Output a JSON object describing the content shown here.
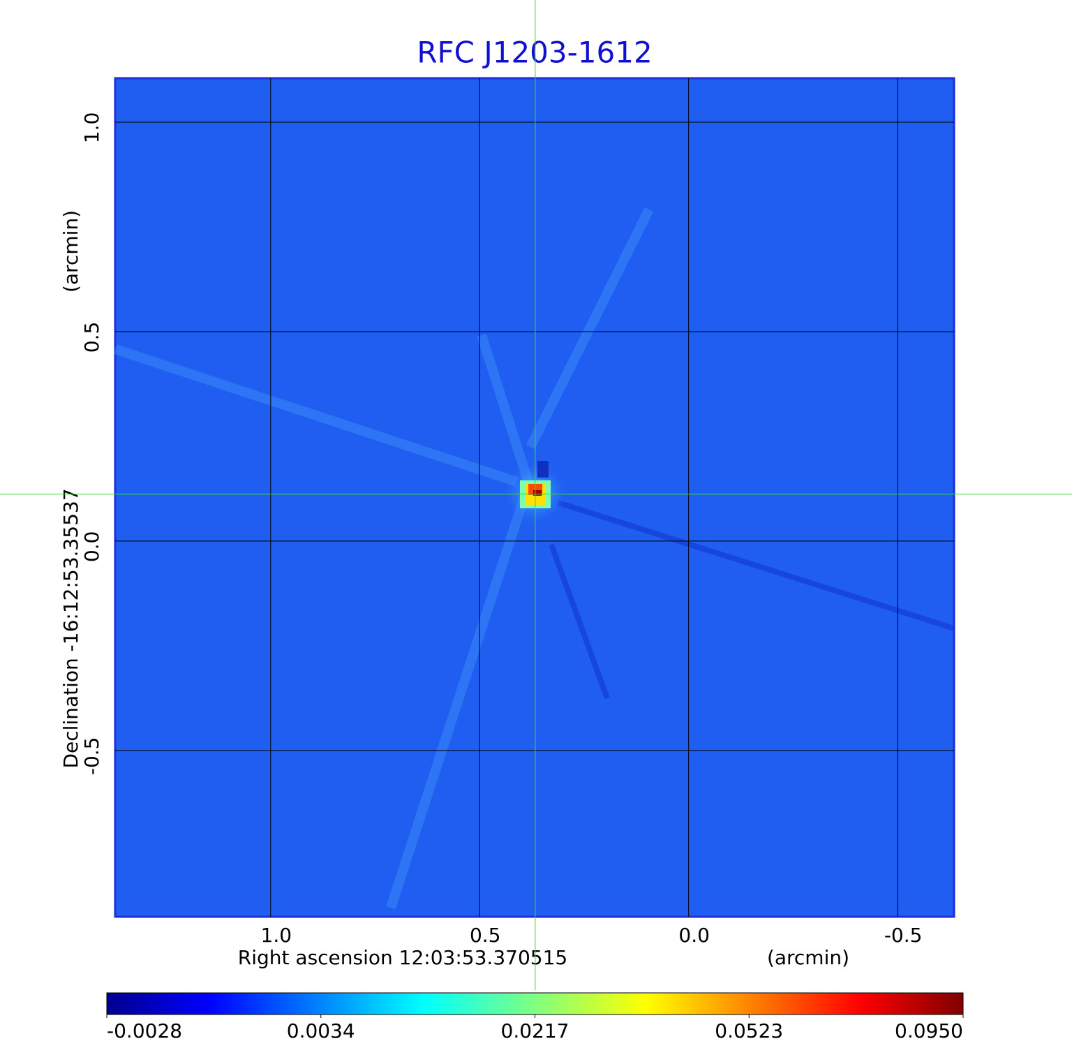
{
  "chart_data": {
    "type": "image",
    "title": "RFC J1203-1612",
    "x_label": "Right ascension  12:03:53.370515",
    "x_unit": "(arcmin)",
    "y_label": "Declination  -16:12:53.35537",
    "y_unit": "(arcmin)",
    "xlim": [
      1.372,
      -0.635
    ],
    "ylim": [
      -0.897,
      1.105
    ],
    "xticks": [
      {
        "value": 1,
        "label": "1.0"
      },
      0.5,
      {
        "value": 0,
        "label": "0.0"
      },
      -0.5
    ],
    "yticks": [
      {
        "value": 1,
        "label": "1.0"
      },
      0.5,
      {
        "value": 0,
        "label": "0.0"
      },
      -0.5
    ],
    "grid": true,
    "crosshair": {
      "x": 0.367,
      "y": 0.112,
      "color": "#33dd33"
    },
    "colormap": "jet",
    "colorbar_ticks": [
      {
        "value": -0.0028,
        "label": "-0.0028"
      },
      {
        "value": 0.0034,
        "label": "0.0034"
      },
      {
        "value": 0.0217,
        "label": "0.0217"
      },
      {
        "value": 0.0523,
        "label": "0.0523"
      },
      {
        "value": 0.095,
        "label": "0.0950"
      }
    ]
  }
}
